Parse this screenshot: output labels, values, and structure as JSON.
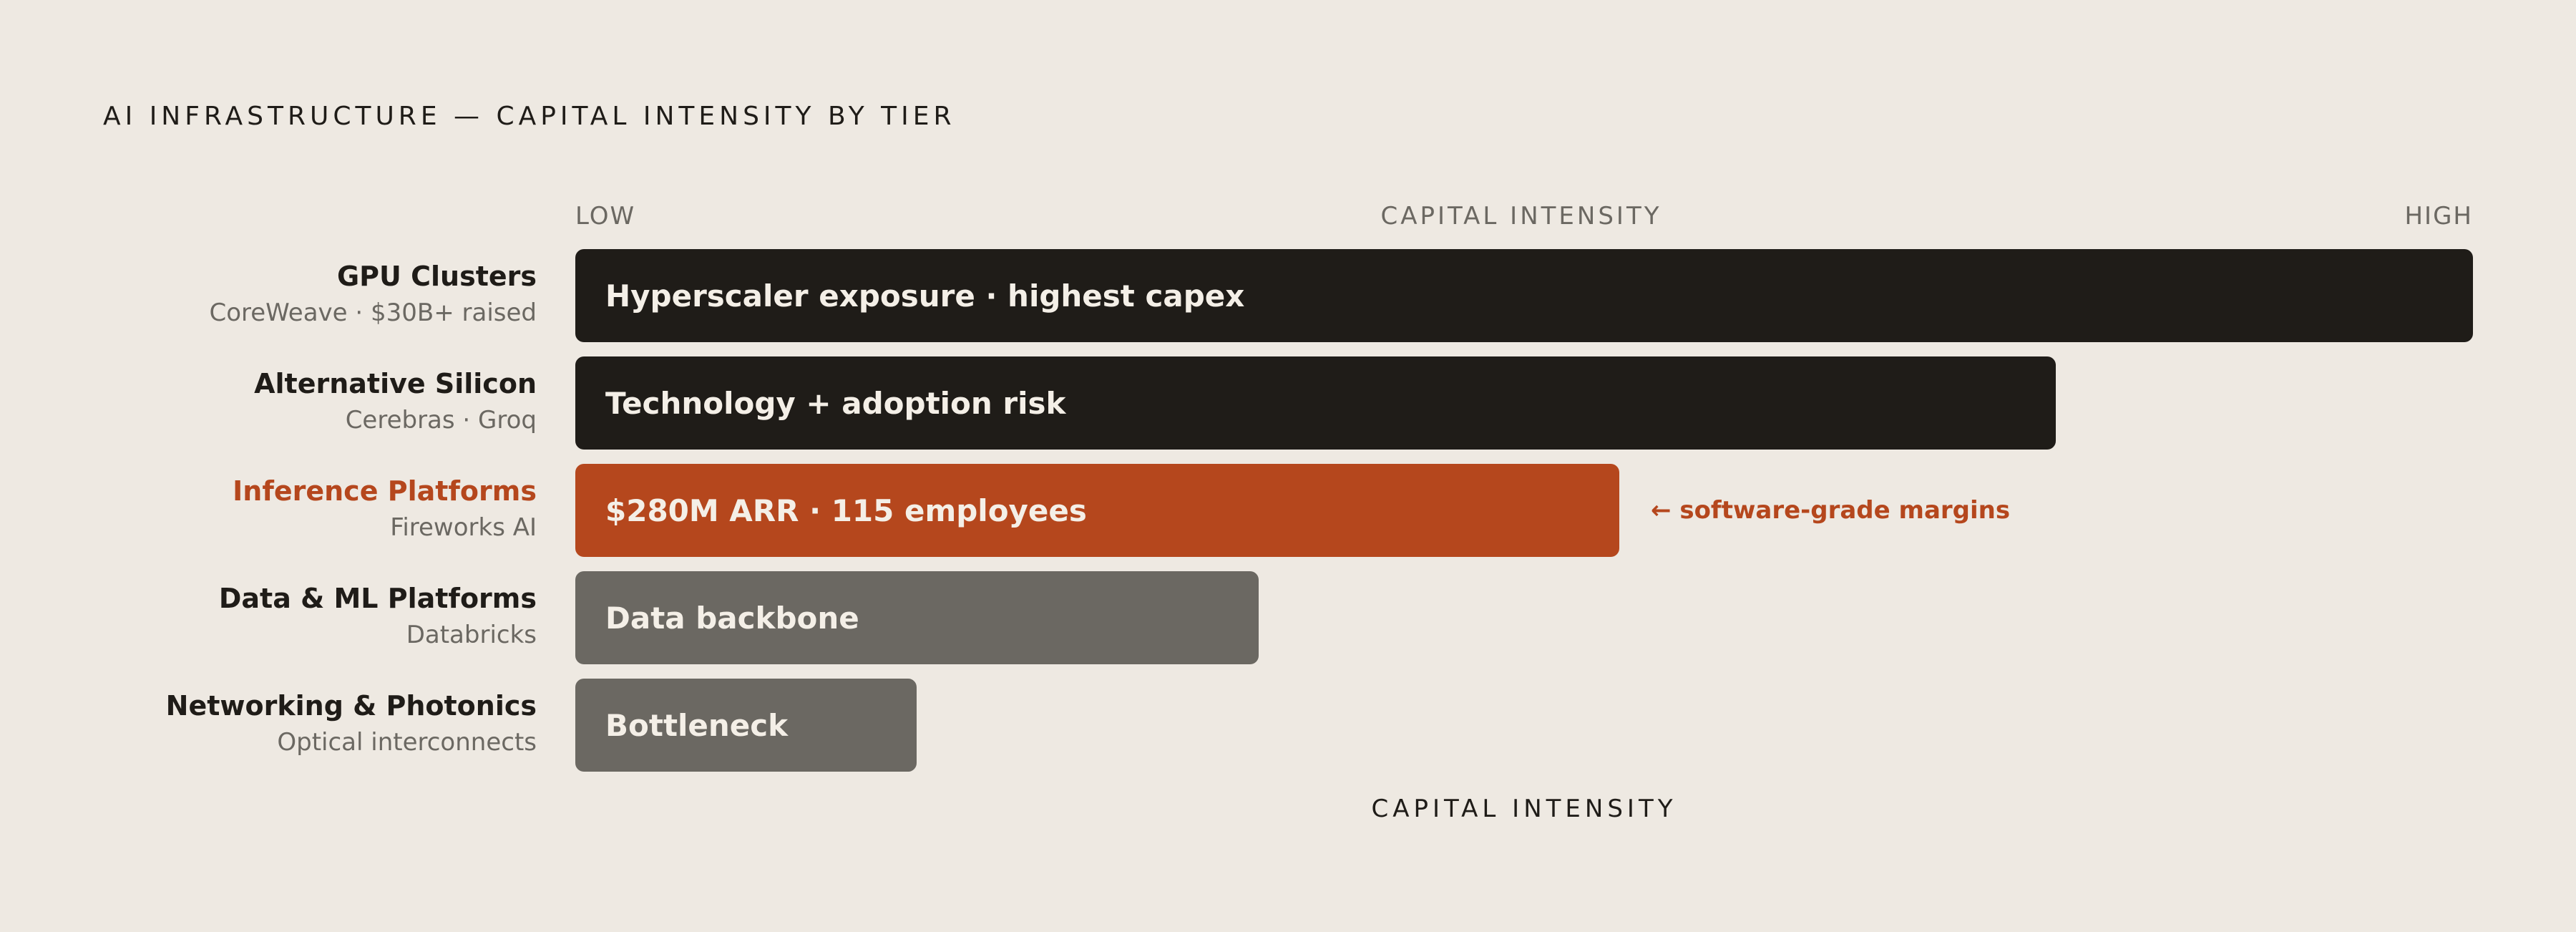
{
  "title": "AI INFRASTRUCTURE — CAPITAL INTENSITY BY TIER",
  "axis": {
    "low_label": "LOW",
    "mid_label": "CAPITAL INTENSITY",
    "high_label": "HIGH",
    "bottom_label": "CAPITAL INTENSITY"
  },
  "colors": {
    "background": "#eee9e2",
    "dark": "#1f1c18",
    "accent": "#b5471d",
    "gray": "#6b6862"
  },
  "chart_data": {
    "type": "bar",
    "orientation": "horizontal",
    "title": "AI INFRASTRUCTURE — CAPITAL INTENSITY BY TIER",
    "xlabel": "CAPITAL INTENSITY",
    "x_scale_labels": [
      "LOW",
      "HIGH"
    ],
    "xlim": [
      0,
      1
    ],
    "grid": false,
    "categories": [
      "GPU Clusters",
      "Alternative Silicon",
      "Inference Platforms",
      "Data & ML Platforms",
      "Networking & Photonics"
    ],
    "subtitles": [
      "CoreWeave · $30B+ raised",
      "Cerebras · Groq",
      "Fireworks AI",
      "Databricks",
      "Optical interconnects"
    ],
    "values": [
      1.0,
      0.78,
      0.55,
      0.36,
      0.18
    ],
    "bar_labels": [
      "Hyperscaler exposure · highest capex",
      "Technology + adoption risk",
      "$280M ARR · 115 employees",
      "Data backbone",
      "Bottleneck"
    ],
    "bar_colors": [
      "#1f1c18",
      "#1f1c18",
      "#b5471d",
      "#6b6862",
      "#6b6862"
    ],
    "highlight_index": 2,
    "annotations": [
      {
        "category": "Inference Platforms",
        "text": "← software-grade margins"
      }
    ]
  }
}
